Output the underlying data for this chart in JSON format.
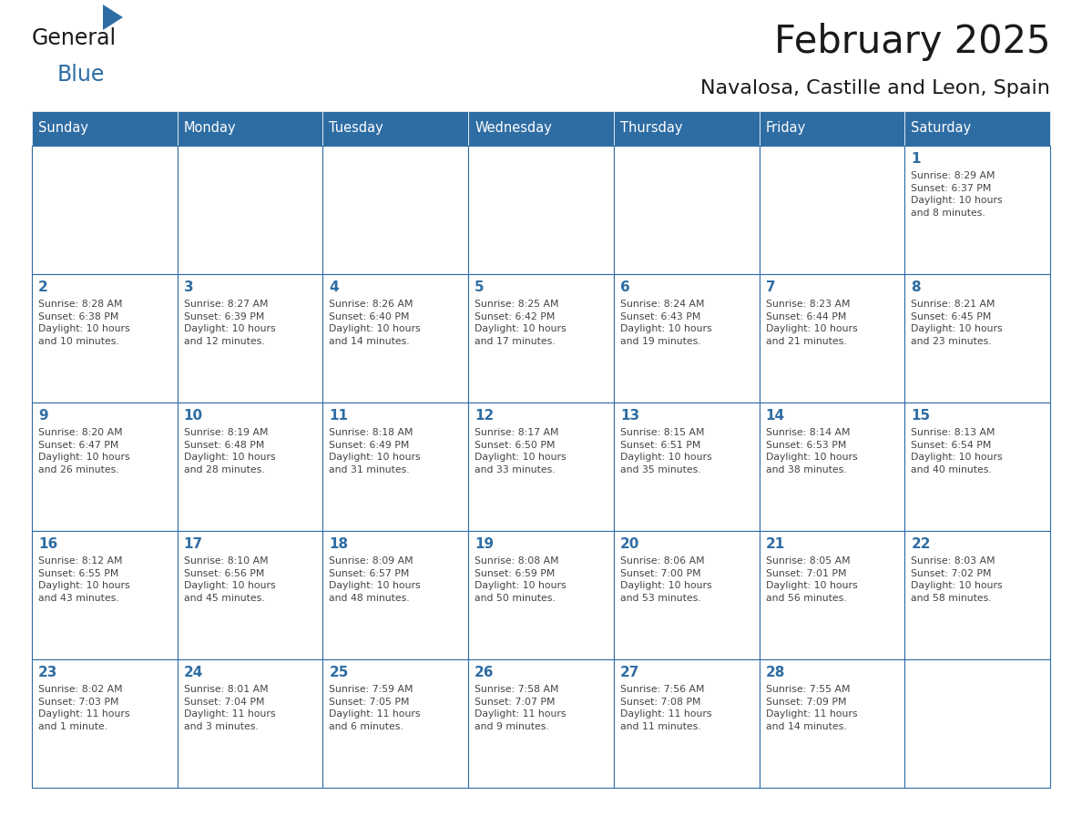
{
  "title": "February 2025",
  "subtitle": "Navalosa, Castille and Leon, Spain",
  "header_bg_color": "#2E6DA4",
  "header_text_color": "#FFFFFF",
  "cell_bg_color": "#FFFFFF",
  "day_number_color": "#2E6DA4",
  "cell_text_color": "#444444",
  "grid_line_color": "#2E6DA4",
  "days_of_week": [
    "Sunday",
    "Monday",
    "Tuesday",
    "Wednesday",
    "Thursday",
    "Friday",
    "Saturday"
  ],
  "weeks": [
    [
      {
        "day": null,
        "info": null
      },
      {
        "day": null,
        "info": null
      },
      {
        "day": null,
        "info": null
      },
      {
        "day": null,
        "info": null
      },
      {
        "day": null,
        "info": null
      },
      {
        "day": null,
        "info": null
      },
      {
        "day": 1,
        "info": "Sunrise: 8:29 AM\nSunset: 6:37 PM\nDaylight: 10 hours\nand 8 minutes."
      }
    ],
    [
      {
        "day": 2,
        "info": "Sunrise: 8:28 AM\nSunset: 6:38 PM\nDaylight: 10 hours\nand 10 minutes."
      },
      {
        "day": 3,
        "info": "Sunrise: 8:27 AM\nSunset: 6:39 PM\nDaylight: 10 hours\nand 12 minutes."
      },
      {
        "day": 4,
        "info": "Sunrise: 8:26 AM\nSunset: 6:40 PM\nDaylight: 10 hours\nand 14 minutes."
      },
      {
        "day": 5,
        "info": "Sunrise: 8:25 AM\nSunset: 6:42 PM\nDaylight: 10 hours\nand 17 minutes."
      },
      {
        "day": 6,
        "info": "Sunrise: 8:24 AM\nSunset: 6:43 PM\nDaylight: 10 hours\nand 19 minutes."
      },
      {
        "day": 7,
        "info": "Sunrise: 8:23 AM\nSunset: 6:44 PM\nDaylight: 10 hours\nand 21 minutes."
      },
      {
        "day": 8,
        "info": "Sunrise: 8:21 AM\nSunset: 6:45 PM\nDaylight: 10 hours\nand 23 minutes."
      }
    ],
    [
      {
        "day": 9,
        "info": "Sunrise: 8:20 AM\nSunset: 6:47 PM\nDaylight: 10 hours\nand 26 minutes."
      },
      {
        "day": 10,
        "info": "Sunrise: 8:19 AM\nSunset: 6:48 PM\nDaylight: 10 hours\nand 28 minutes."
      },
      {
        "day": 11,
        "info": "Sunrise: 8:18 AM\nSunset: 6:49 PM\nDaylight: 10 hours\nand 31 minutes."
      },
      {
        "day": 12,
        "info": "Sunrise: 8:17 AM\nSunset: 6:50 PM\nDaylight: 10 hours\nand 33 minutes."
      },
      {
        "day": 13,
        "info": "Sunrise: 8:15 AM\nSunset: 6:51 PM\nDaylight: 10 hours\nand 35 minutes."
      },
      {
        "day": 14,
        "info": "Sunrise: 8:14 AM\nSunset: 6:53 PM\nDaylight: 10 hours\nand 38 minutes."
      },
      {
        "day": 15,
        "info": "Sunrise: 8:13 AM\nSunset: 6:54 PM\nDaylight: 10 hours\nand 40 minutes."
      }
    ],
    [
      {
        "day": 16,
        "info": "Sunrise: 8:12 AM\nSunset: 6:55 PM\nDaylight: 10 hours\nand 43 minutes."
      },
      {
        "day": 17,
        "info": "Sunrise: 8:10 AM\nSunset: 6:56 PM\nDaylight: 10 hours\nand 45 minutes."
      },
      {
        "day": 18,
        "info": "Sunrise: 8:09 AM\nSunset: 6:57 PM\nDaylight: 10 hours\nand 48 minutes."
      },
      {
        "day": 19,
        "info": "Sunrise: 8:08 AM\nSunset: 6:59 PM\nDaylight: 10 hours\nand 50 minutes."
      },
      {
        "day": 20,
        "info": "Sunrise: 8:06 AM\nSunset: 7:00 PM\nDaylight: 10 hours\nand 53 minutes."
      },
      {
        "day": 21,
        "info": "Sunrise: 8:05 AM\nSunset: 7:01 PM\nDaylight: 10 hours\nand 56 minutes."
      },
      {
        "day": 22,
        "info": "Sunrise: 8:03 AM\nSunset: 7:02 PM\nDaylight: 10 hours\nand 58 minutes."
      }
    ],
    [
      {
        "day": 23,
        "info": "Sunrise: 8:02 AM\nSunset: 7:03 PM\nDaylight: 11 hours\nand 1 minute."
      },
      {
        "day": 24,
        "info": "Sunrise: 8:01 AM\nSunset: 7:04 PM\nDaylight: 11 hours\nand 3 minutes."
      },
      {
        "day": 25,
        "info": "Sunrise: 7:59 AM\nSunset: 7:05 PM\nDaylight: 11 hours\nand 6 minutes."
      },
      {
        "day": 26,
        "info": "Sunrise: 7:58 AM\nSunset: 7:07 PM\nDaylight: 11 hours\nand 9 minutes."
      },
      {
        "day": 27,
        "info": "Sunrise: 7:56 AM\nSunset: 7:08 PM\nDaylight: 11 hours\nand 11 minutes."
      },
      {
        "day": 28,
        "info": "Sunrise: 7:55 AM\nSunset: 7:09 PM\nDaylight: 11 hours\nand 14 minutes."
      },
      {
        "day": null,
        "info": null
      }
    ]
  ],
  "logo_general_color": "#1a1a1a",
  "logo_blue_color": "#2E6DA4",
  "logo_triangle_color": "#2E6DA4"
}
